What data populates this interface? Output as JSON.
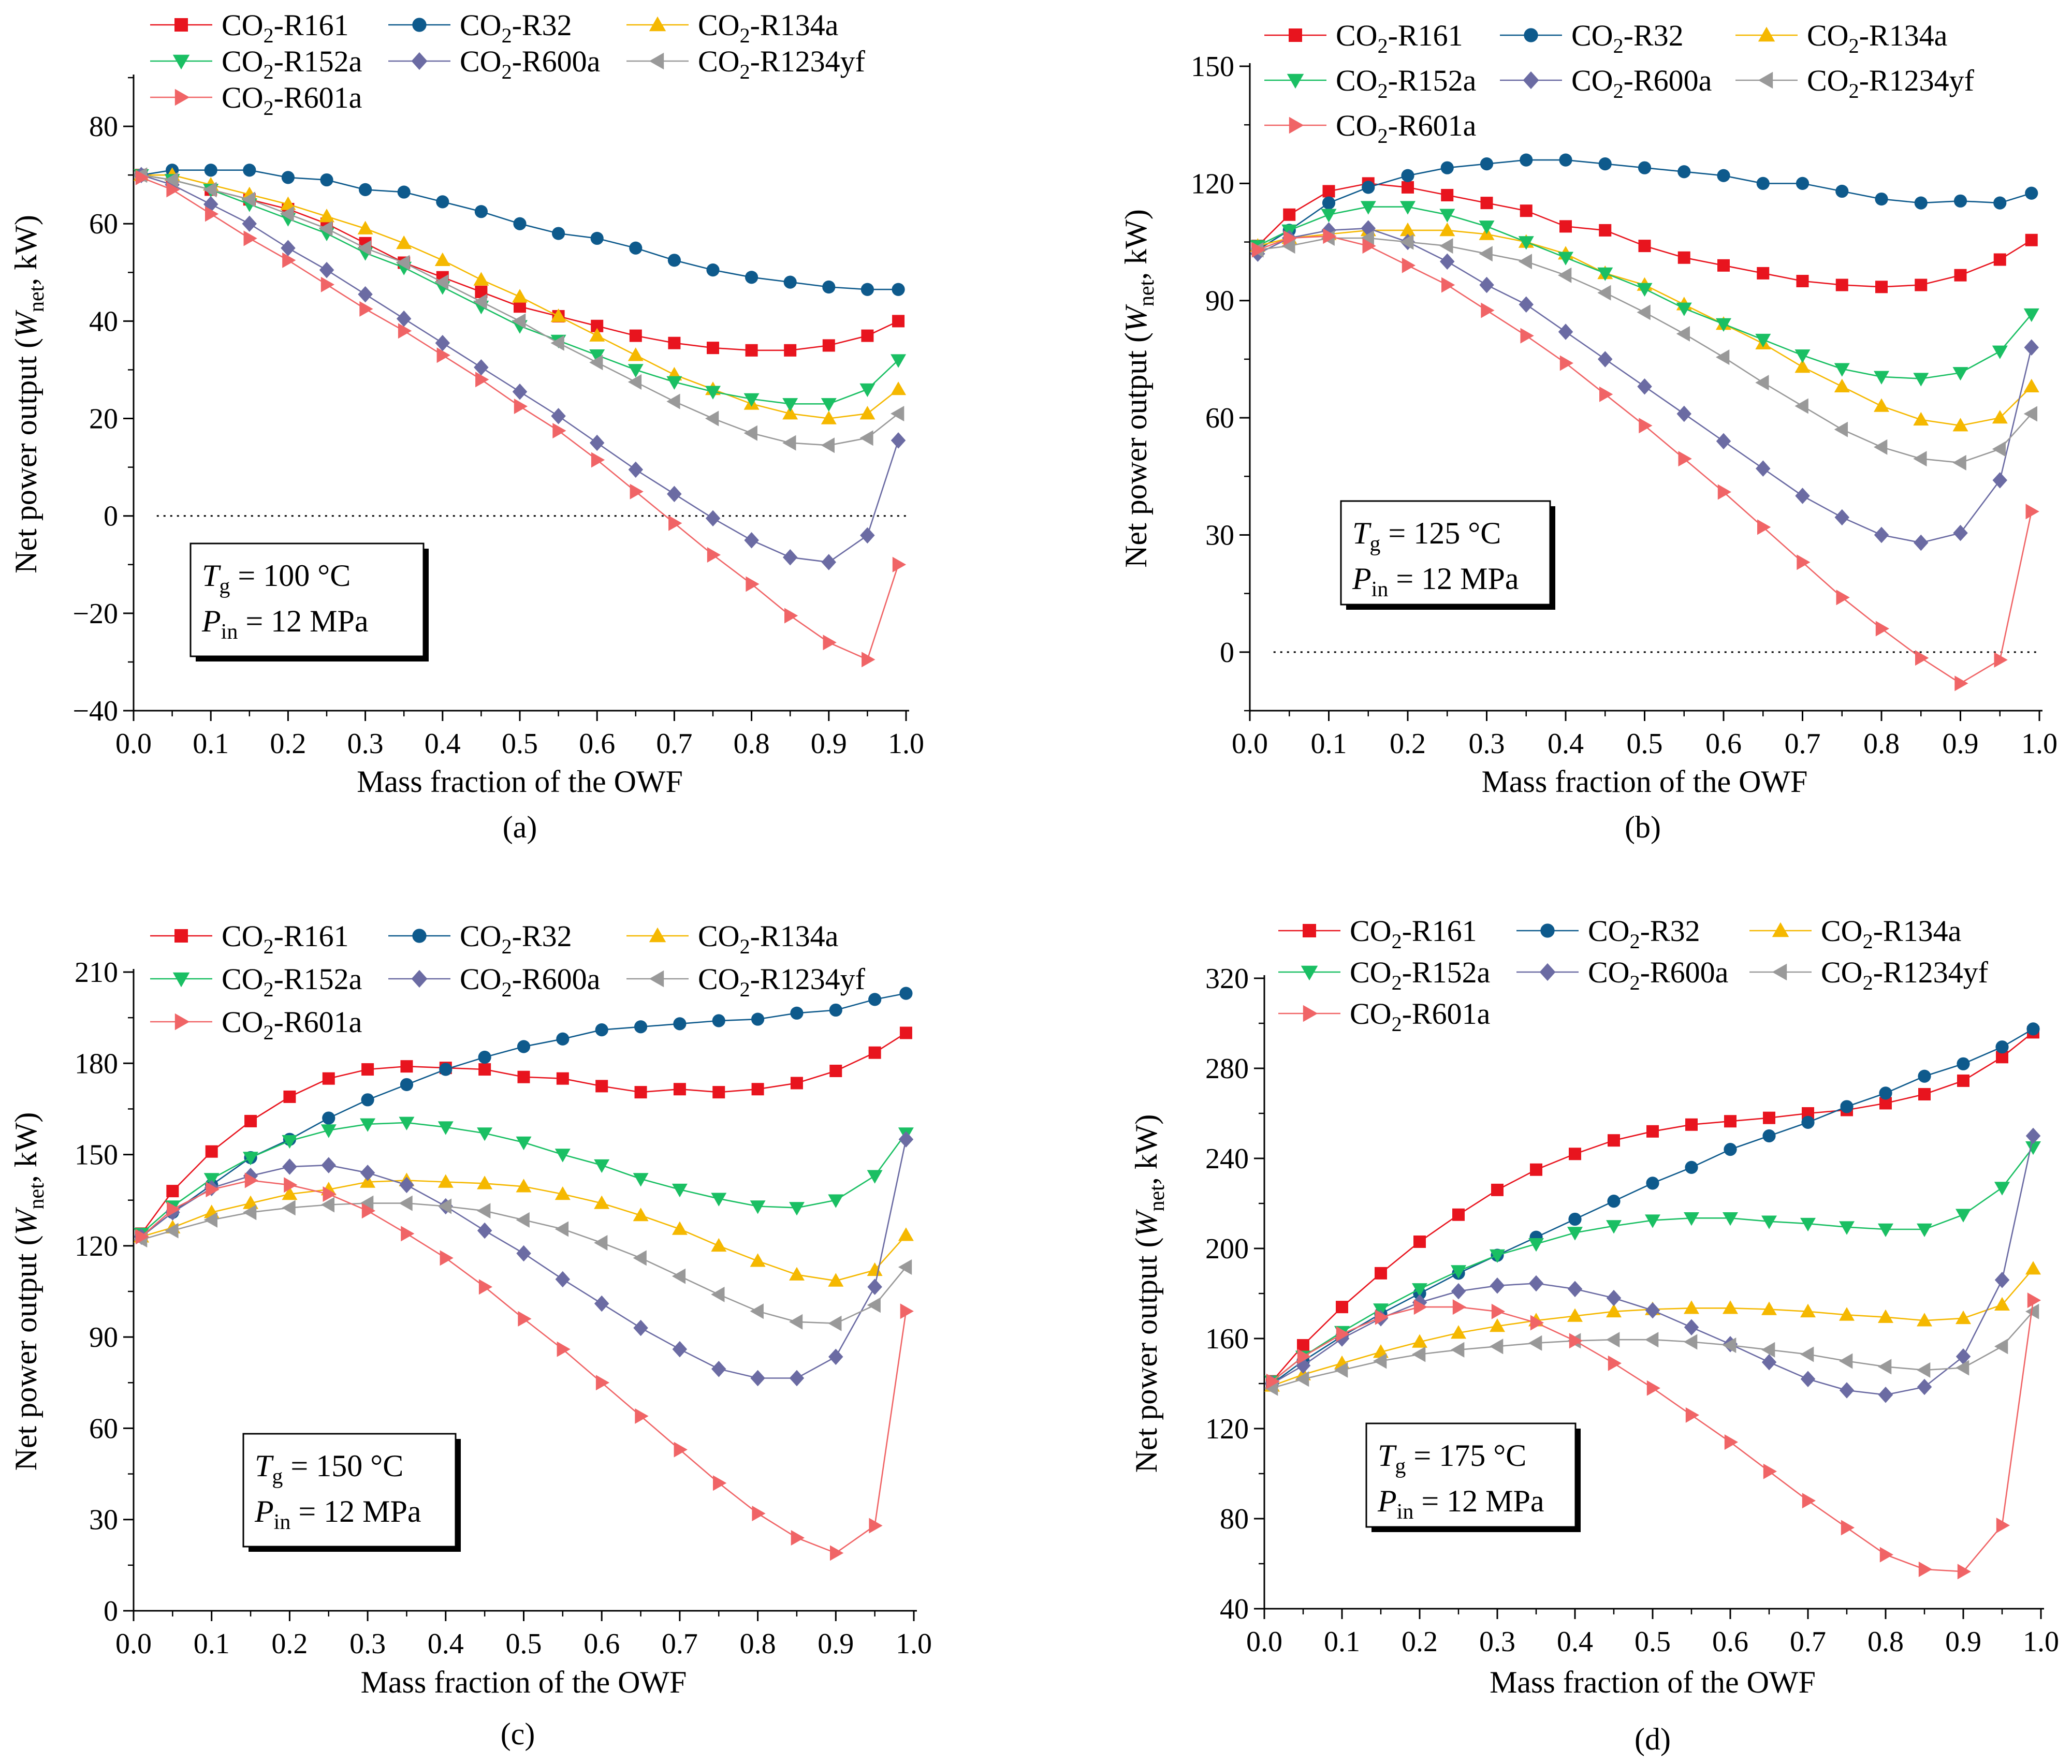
{
  "figure": {
    "panels": [
      {
        "label": "(a)",
        "temperature": "100 °C",
        "pressure": "12 MPa"
      },
      {
        "label": "(b)",
        "temperature": "125 °C",
        "pressure": "12 MPa"
      },
      {
        "label": "(c)",
        "temperature": "150 °C",
        "pressure": "12 MPa"
      },
      {
        "label": "(d)",
        "temperature": "175 °C",
        "pressure": "12 MPa"
      }
    ]
  },
  "chart_data": [
    {
      "type": "line",
      "label": "(a)",
      "xlabel": "Mass fraction of the OWF",
      "ylabel": "Net power output (W_net, kW)",
      "xlim": [
        0,
        1.0
      ],
      "ylim": [
        -40,
        90
      ],
      "xticks": [
        0.0,
        0.1,
        0.2,
        0.3,
        0.4,
        0.5,
        0.6,
        0.7,
        0.8,
        0.9,
        1.0
      ],
      "yticks": [
        -40,
        -20,
        0,
        20,
        40,
        60,
        80
      ],
      "zero_line": true,
      "annotation": {
        "tg": "100 °C",
        "pin": "12 MPa"
      },
      "x": [
        0.01,
        0.05,
        0.1,
        0.15,
        0.2,
        0.25,
        0.3,
        0.35,
        0.4,
        0.45,
        0.5,
        0.55,
        0.6,
        0.65,
        0.7,
        0.75,
        0.8,
        0.85,
        0.9,
        0.95,
        0.99
      ],
      "series": [
        {
          "name": "CO2-R161",
          "values": [
            70,
            69,
            67,
            65,
            63,
            60,
            56,
            52,
            49,
            46,
            43,
            41,
            39,
            37,
            35.5,
            34.5,
            34,
            34,
            35,
            37,
            40
          ]
        },
        {
          "name": "CO2-R32",
          "values": [
            70,
            71,
            71,
            71,
            69.5,
            69,
            67,
            66.5,
            64.5,
            62.5,
            60,
            58,
            57,
            55,
            52.5,
            50.5,
            49,
            48,
            47,
            46.5,
            46.5
          ]
        },
        {
          "name": "CO2-R134a",
          "values": [
            70,
            70,
            68,
            66,
            64,
            61.5,
            59,
            56,
            52.5,
            48.5,
            45,
            41,
            37,
            33,
            29,
            26,
            23,
            21,
            20,
            21,
            26
          ]
        },
        {
          "name": "CO2-R152a",
          "values": [
            70,
            69,
            67,
            64,
            61,
            58,
            54,
            51,
            47,
            43,
            39,
            36,
            33,
            30,
            27.5,
            25.5,
            24,
            23,
            23,
            26,
            32
          ]
        },
        {
          "name": "CO2-R600a",
          "values": [
            70,
            68,
            64,
            60,
            55,
            50.5,
            45.5,
            40.5,
            35.5,
            30.5,
            25.5,
            20.5,
            15,
            9.5,
            4.5,
            -0.5,
            -5,
            -8.5,
            -9.5,
            -4,
            15.5
          ]
        },
        {
          "name": "CO2-R1234yf",
          "values": [
            70,
            69,
            67,
            65,
            62,
            59,
            55,
            52,
            48,
            44,
            40,
            35.5,
            31.5,
            27.5,
            23.5,
            20,
            17,
            15,
            14.5,
            16,
            21
          ]
        },
        {
          "name": "CO2-R601a",
          "values": [
            69.5,
            67,
            62,
            57,
            52.5,
            47.5,
            42.5,
            38,
            33,
            28,
            22.5,
            17.5,
            11.5,
            5,
            -1.5,
            -8,
            -14,
            -20.5,
            -26,
            -29.5,
            -10
          ]
        }
      ]
    },
    {
      "type": "line",
      "label": "(b)",
      "xlabel": "Mass fraction of the OWF",
      "ylabel": "Net power output (W_net, kW)",
      "xlim": [
        0,
        1.0
      ],
      "ylim": [
        -15,
        150
      ],
      "xticks": [
        0.0,
        0.1,
        0.2,
        0.3,
        0.4,
        0.5,
        0.6,
        0.7,
        0.8,
        0.9,
        1.0
      ],
      "yticks": [
        0,
        30,
        60,
        90,
        120,
        150
      ],
      "zero_line": true,
      "annotation": {
        "tg": "125 °C",
        "pin": "12 MPa"
      },
      "x": [
        0.01,
        0.05,
        0.1,
        0.15,
        0.2,
        0.25,
        0.3,
        0.35,
        0.4,
        0.45,
        0.5,
        0.55,
        0.6,
        0.65,
        0.7,
        0.75,
        0.8,
        0.85,
        0.9,
        0.95,
        0.99
      ],
      "series": [
        {
          "name": "CO2-R161",
          "values": [
            104,
            112,
            118,
            120,
            119,
            117,
            115,
            113,
            109,
            108,
            104,
            101,
            99,
            97,
            95,
            94,
            93.5,
            94,
            96.5,
            100.5,
            105.5
          ]
        },
        {
          "name": "CO2-R32",
          "values": [
            103,
            108,
            115,
            119,
            122,
            124,
            125,
            126,
            126,
            125,
            124,
            123,
            122,
            120,
            120,
            118,
            116,
            115,
            115.5,
            115,
            117.5
          ]
        },
        {
          "name": "CO2-R134a",
          "values": [
            104,
            106,
            107,
            108,
            108,
            108,
            107,
            105,
            102,
            97,
            94,
            89,
            84,
            79,
            73,
            68,
            63,
            59.5,
            58,
            60,
            68
          ]
        },
        {
          "name": "CO2-R152a",
          "values": [
            104,
            108,
            112,
            114,
            114,
            112,
            109,
            105,
            101,
            97,
            93,
            88,
            84,
            80,
            76,
            72.5,
            70.5,
            70,
            71.5,
            77,
            86.5
          ]
        },
        {
          "name": "CO2-R600a",
          "values": [
            102,
            106,
            108,
            108.5,
            105,
            100,
            94,
            89,
            82,
            75,
            68,
            61,
            54,
            47,
            40,
            34.5,
            30,
            28,
            30.5,
            44,
            78
          ]
        },
        {
          "name": "CO2-R1234yf",
          "values": [
            103,
            104,
            106,
            106,
            105,
            104,
            102,
            100,
            96.5,
            92,
            87,
            81.5,
            75.5,
            69,
            63,
            57,
            52.5,
            49.5,
            48.5,
            52,
            61
          ]
        },
        {
          "name": "CO2-R601a",
          "values": [
            103,
            106,
            106.5,
            104,
            99,
            94,
            87.5,
            81,
            74,
            66,
            58,
            49.5,
            41,
            32,
            23,
            14,
            6,
            -1.5,
            -8,
            -2,
            36
          ]
        }
      ]
    },
    {
      "type": "line",
      "label": "(c)",
      "xlabel": "Mass fraction of the OWF",
      "ylabel": "Net power output (W_net, kW)",
      "xlim": [
        0,
        1.0
      ],
      "ylim": [
        0,
        210
      ],
      "xticks": [
        0.0,
        0.1,
        0.2,
        0.3,
        0.4,
        0.5,
        0.6,
        0.7,
        0.8,
        0.9,
        1.0
      ],
      "yticks": [
        0,
        30,
        60,
        90,
        120,
        150,
        180,
        210
      ],
      "zero_line": false,
      "annotation": {
        "tg": "150 °C",
        "pin": "12 MPa"
      },
      "x": [
        0.01,
        0.05,
        0.1,
        0.15,
        0.2,
        0.25,
        0.3,
        0.35,
        0.4,
        0.45,
        0.5,
        0.55,
        0.6,
        0.65,
        0.7,
        0.75,
        0.8,
        0.85,
        0.9,
        0.95,
        0.99
      ],
      "series": [
        {
          "name": "CO2-R161",
          "values": [
            124,
            138,
            151,
            161,
            169,
            175,
            178,
            179,
            178.5,
            178,
            175.5,
            175,
            172.5,
            170.5,
            171.5,
            170.5,
            171.5,
            173.5,
            177.5,
            183.5,
            190
          ]
        },
        {
          "name": "CO2-R32",
          "values": [
            123,
            131,
            140,
            149,
            155,
            162,
            168,
            173,
            178,
            182,
            185.5,
            188,
            191,
            192,
            193,
            194,
            194.5,
            196.5,
            197.5,
            201,
            203
          ]
        },
        {
          "name": "CO2-R134a",
          "values": [
            123,
            126,
            131,
            134,
            137,
            138.5,
            141,
            141.5,
            141,
            140.5,
            139.5,
            137,
            134,
            130,
            125.5,
            120,
            115,
            110.5,
            108.5,
            112,
            123.5
          ]
        },
        {
          "name": "CO2-R152a",
          "values": [
            124,
            133,
            142,
            149,
            154.5,
            158,
            160,
            160.5,
            159,
            157,
            154,
            150,
            146.5,
            142,
            138.5,
            135.5,
            133,
            132.5,
            135,
            143,
            157
          ]
        },
        {
          "name": "CO2-R600a",
          "values": [
            123,
            131,
            139,
            143,
            146,
            146.5,
            144,
            140,
            133,
            125,
            117.5,
            109,
            101,
            93,
            86,
            79.5,
            76.5,
            76.5,
            83.5,
            106.5,
            155
          ]
        },
        {
          "name": "CO2-R1234yf",
          "values": [
            122,
            125,
            128.5,
            131,
            132.5,
            133.5,
            134,
            134,
            133,
            131.5,
            128.5,
            125.5,
            121,
            116,
            110,
            104,
            98.5,
            95,
            94.5,
            100.5,
            113
          ]
        },
        {
          "name": "CO2-R601a",
          "values": [
            123,
            132,
            138.5,
            141.5,
            140,
            137,
            131.5,
            124,
            116,
            106.5,
            96,
            86,
            75,
            64,
            53,
            42,
            32,
            24,
            19,
            28,
            98.5
          ]
        }
      ]
    },
    {
      "type": "line",
      "label": "(d)",
      "xlabel": "Mass fraction of the OWF",
      "ylabel": "Net power output (W_net, kW)",
      "xlim": [
        0,
        1.0
      ],
      "ylim": [
        40,
        320
      ],
      "xticks": [
        0.0,
        0.1,
        0.2,
        0.3,
        0.4,
        0.5,
        0.6,
        0.7,
        0.8,
        0.9,
        1.0
      ],
      "yticks": [
        40,
        80,
        120,
        160,
        200,
        240,
        280,
        320
      ],
      "zero_line": false,
      "annotation": {
        "tg": "175 °C",
        "pin": "12 MPa"
      },
      "x": [
        0.01,
        0.05,
        0.1,
        0.15,
        0.2,
        0.25,
        0.3,
        0.35,
        0.4,
        0.45,
        0.5,
        0.55,
        0.6,
        0.65,
        0.7,
        0.75,
        0.8,
        0.85,
        0.9,
        0.95,
        0.99
      ],
      "series": [
        {
          "name": "CO2-R161",
          "values": [
            141,
            157,
            174,
            189,
            203,
            215,
            226,
            235,
            242,
            248,
            252,
            255,
            256.5,
            258,
            260,
            261.5,
            264.5,
            268.5,
            274.5,
            285,
            296
          ]
        },
        {
          "name": "CO2-R32",
          "values": [
            140,
            150,
            161,
            171,
            180,
            189,
            197,
            205,
            213,
            221,
            229,
            236,
            244,
            250,
            256,
            263,
            269,
            276.5,
            282,
            289.5,
            297.5
          ]
        },
        {
          "name": "CO2-R134a",
          "values": [
            139,
            144,
            149,
            154,
            158.5,
            162.5,
            165.5,
            168,
            170,
            172,
            173,
            173.5,
            173.5,
            173,
            172,
            170.5,
            169.5,
            168,
            169,
            175,
            191
          ]
        },
        {
          "name": "CO2-R152a",
          "values": [
            141,
            152,
            163,
            173,
            182,
            190,
            197,
            202,
            207,
            210,
            212.5,
            213.5,
            213.5,
            212,
            211,
            209.5,
            208.5,
            208.5,
            215,
            227,
            245
          ]
        },
        {
          "name": "CO2-R600a",
          "values": [
            140,
            148,
            160,
            169,
            176,
            181,
            183.5,
            184.5,
            182,
            178,
            172.5,
            165,
            157.5,
            149.5,
            142,
            137,
            135,
            138.5,
            152,
            186,
            250
          ]
        },
        {
          "name": "CO2-R1234yf",
          "values": [
            138,
            142,
            146,
            150,
            153,
            155,
            156.5,
            158,
            159,
            159.5,
            159.5,
            158.5,
            157,
            155,
            153,
            150,
            147.5,
            146,
            147,
            156.5,
            172
          ]
        },
        {
          "name": "CO2-R601a",
          "values": [
            141,
            152,
            162,
            169.5,
            174,
            174,
            172,
            167,
            159,
            149,
            138,
            126,
            114,
            101,
            88,
            76,
            64,
            57.5,
            56.5,
            77,
            177
          ]
        }
      ]
    }
  ],
  "styles": {
    "CO2-R161": {
      "color": "#e8141e",
      "marker": "square"
    },
    "CO2-R32": {
      "color": "#0e5a8c",
      "marker": "circle"
    },
    "CO2-R134a": {
      "color": "#f5b800",
      "marker": "triangle-up"
    },
    "CO2-R152a": {
      "color": "#1abf63",
      "marker": "triangle-down"
    },
    "CO2-R600a": {
      "color": "#6b6ba3",
      "marker": "diamond"
    },
    "CO2-R1234yf": {
      "color": "#999999",
      "marker": "triangle-left"
    },
    "CO2-R601a": {
      "color": "#f06466",
      "marker": "triangle-right"
    }
  }
}
